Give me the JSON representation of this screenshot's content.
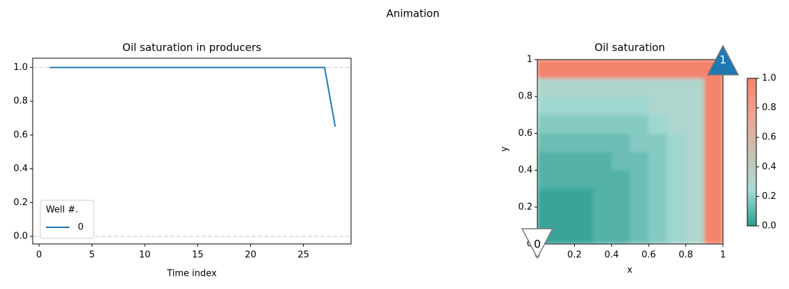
{
  "title": "Animation",
  "chart_data": [
    {
      "type": "line",
      "title": "Oil saturation in producers",
      "x_label": "Time index",
      "x": [
        1,
        2,
        3,
        4,
        5,
        6,
        7,
        8,
        9,
        10,
        11,
        12,
        13,
        14,
        15,
        16,
        17,
        18,
        19,
        20,
        21,
        22,
        23,
        24,
        25,
        26,
        27,
        28
      ],
      "series": [
        {
          "name": "0",
          "color": "#1f77b4",
          "values": [
            1,
            1,
            1,
            1,
            1,
            1,
            1,
            1,
            1,
            1,
            1,
            1,
            1,
            1,
            1,
            1,
            1,
            1,
            1,
            1,
            1,
            1,
            1,
            1,
            1,
            1,
            1,
            0.65
          ]
        }
      ],
      "hlines": [
        0,
        1
      ],
      "hline_color": "#d9d9d9",
      "xlim": [
        -0.6,
        29.5
      ],
      "ylim": [
        -0.045,
        1.055
      ],
      "xticks": [
        0,
        5,
        10,
        15,
        20,
        25
      ],
      "yticks": [
        {
          "value": 0,
          "label": "0.0"
        },
        0.2,
        0.4,
        0.6,
        0.8,
        {
          "value": 1,
          "label": "1.0"
        }
      ],
      "legend": {
        "title": "Well #.",
        "loc": "lower left"
      }
    },
    {
      "type": "contour",
      "title": "Oil saturation",
      "x_label": "x",
      "y_label": "y",
      "xlim": [
        0,
        1
      ],
      "ylim": [
        0,
        1
      ],
      "xticks": [
        0,
        0.2,
        0.4,
        0.6,
        0.8,
        1
      ],
      "yticks": [
        0,
        0.2,
        0.4,
        0.6,
        0.8,
        1
      ],
      "z": [
        [
          0.03,
          0.03,
          0.03,
          0.08,
          0.08,
          0.13,
          0.18,
          0.23,
          0.3,
          1
        ],
        [
          0.03,
          0.03,
          0.03,
          0.08,
          0.08,
          0.13,
          0.18,
          0.23,
          0.3,
          1
        ],
        [
          0.03,
          0.03,
          0.03,
          0.08,
          0.08,
          0.13,
          0.18,
          0.23,
          0.3,
          1
        ],
        [
          0.08,
          0.08,
          0.08,
          0.08,
          0.08,
          0.13,
          0.18,
          0.23,
          0.3,
          1
        ],
        [
          0.08,
          0.08,
          0.08,
          0.08,
          0.13,
          0.13,
          0.18,
          0.23,
          0.3,
          1
        ],
        [
          0.13,
          0.13,
          0.13,
          0.13,
          0.13,
          0.18,
          0.18,
          0.23,
          0.3,
          1
        ],
        [
          0.18,
          0.18,
          0.18,
          0.18,
          0.18,
          0.18,
          0.23,
          0.3,
          0.3,
          1
        ],
        [
          0.23,
          0.23,
          0.23,
          0.23,
          0.23,
          0.23,
          0.3,
          0.3,
          0.3,
          1
        ],
        [
          0.3,
          0.3,
          0.3,
          0.3,
          0.3,
          0.3,
          0.3,
          0.3,
          0.3,
          1
        ],
        [
          1,
          1,
          1,
          1,
          1,
          1,
          1,
          1,
          1,
          1
        ]
      ],
      "colormap": [
        "#2a9d8f",
        "#a8dcd6",
        "#c8c0b0",
        "#eea592",
        "#f4836c"
      ],
      "clim": [
        0,
        1
      ],
      "colorbar_ticks": [
        {
          "value": 0,
          "label": "0.0"
        },
        0.2,
        0.4,
        0.6,
        0.8,
        {
          "value": 1,
          "label": "1.0"
        }
      ],
      "wells": [
        {
          "label": "0",
          "x": 0,
          "y": 0,
          "marker": "down",
          "color": "#ffffff",
          "text_color": "#000000"
        },
        {
          "label": "1",
          "x": 1,
          "y": 1,
          "marker": "up",
          "color": "#1f77b4",
          "text_color": "#ffffff"
        }
      ]
    }
  ]
}
